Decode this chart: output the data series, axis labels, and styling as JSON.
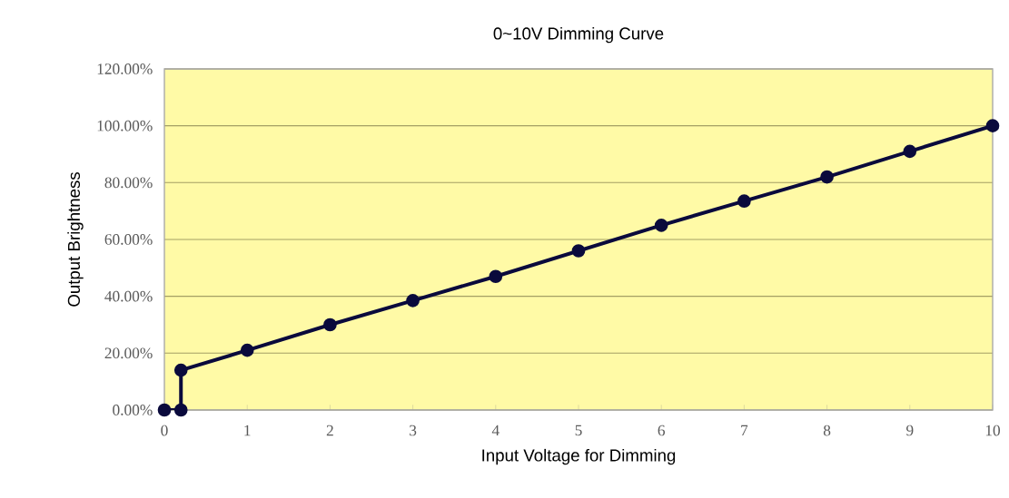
{
  "chart_data": {
    "type": "line",
    "title": "0~10V Dimming Curve",
    "xlabel": "Input Voltage for Dimming",
    "ylabel": "Output Brightness",
    "x": [
      0,
      0.2,
      0.2,
      1,
      2,
      3,
      4,
      5,
      6,
      7,
      8,
      9,
      10
    ],
    "series": [
      {
        "color": "#0a0a3c",
        "values": [
          0,
          0,
          14,
          21,
          30,
          38.5,
          47,
          56,
          65,
          73.5,
          82,
          91,
          100
        ]
      }
    ],
    "xlim": [
      0,
      10
    ],
    "xticks": [
      0,
      1,
      2,
      3,
      4,
      5,
      6,
      7,
      8,
      9,
      10
    ],
    "ylim": [
      0,
      120
    ],
    "yticks": [
      {
        "value": 0,
        "label": "0.00%"
      },
      {
        "value": 20,
        "label": "20.00%"
      },
      {
        "value": 40,
        "label": "40.00%"
      },
      {
        "value": 60,
        "label": "60.00%"
      },
      {
        "value": 80,
        "label": "80.00%"
      },
      {
        "value": 100,
        "label": "100.00%"
      },
      {
        "value": 120,
        "label": "120.00%"
      }
    ],
    "grid": "y",
    "marker": "circle",
    "line_style": "solid"
  }
}
